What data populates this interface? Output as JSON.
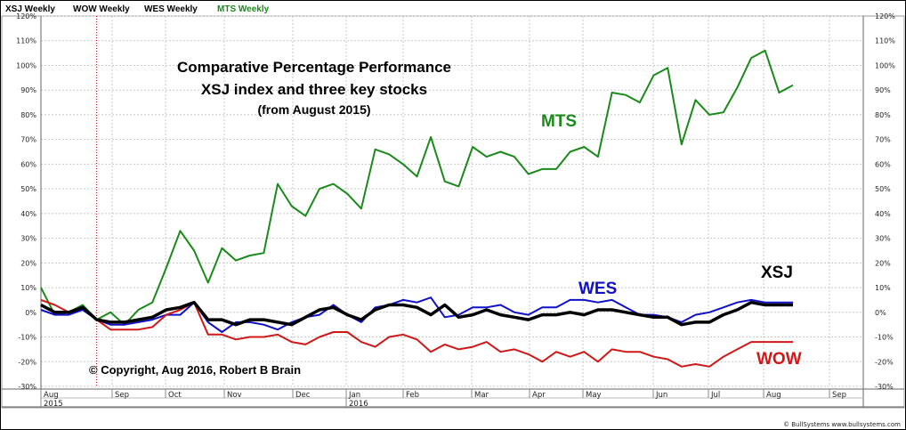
{
  "chart_data": {
    "type": "line",
    "legend": [
      {
        "name": "XSJ Weekly",
        "color": "#000000"
      },
      {
        "name": "WOW Weekly",
        "color": "#000000"
      },
      {
        "name": "WES Weekly",
        "color": "#000000"
      },
      {
        "name": "MTS Weekly",
        "color": "#1a8a1a"
      }
    ],
    "title": "Comparative Percentage Performance",
    "subtitle": "XSJ index and three key stocks",
    "subtitle2": "(from August 2015)",
    "copyright": "© Copyright, Aug 2016, Robert B Brain",
    "credit": "© BullSystems www.bullsystems.com",
    "ylim": [
      -30,
      120
    ],
    "y_ticks": [
      {
        "v": 120,
        "label": "120%"
      },
      {
        "v": 110,
        "label": "110%"
      },
      {
        "v": 100,
        "label": "100%"
      },
      {
        "v": 90,
        "label": "90%"
      },
      {
        "v": 80,
        "label": "80%"
      },
      {
        "v": 70,
        "label": "70%"
      },
      {
        "v": 60,
        "label": "60%"
      },
      {
        "v": 50,
        "label": "50%"
      },
      {
        "v": 40,
        "label": "40%"
      },
      {
        "v": 30,
        "label": "30%"
      },
      {
        "v": 20,
        "label": "20%"
      },
      {
        "v": 10,
        "label": "10%"
      },
      {
        "v": 0,
        "label": "0%"
      },
      {
        "v": -10,
        "label": "-10%"
      },
      {
        "v": -20,
        "label": "-20%"
      },
      {
        "v": -30,
        "label": "-30%"
      }
    ],
    "months": [
      "Aug",
      "Sep",
      "Oct",
      "Nov",
      "Dec",
      "Jan",
      "Feb",
      "Mar",
      "Apr",
      "May",
      "Jun",
      "Jul",
      "Aug",
      "Sep"
    ],
    "years": [
      "2015",
      "2016"
    ],
    "start_marker_week": 4,
    "annotations": {
      "MTS": "MTS",
      "WES": "WES",
      "XSJ": "XSJ",
      "WOW": "WOW"
    },
    "series": [
      {
        "name": "MTS",
        "color": "#1a8a1a",
        "width": 2,
        "values": [
          10,
          -1,
          0,
          3,
          -3,
          0,
          -5,
          1,
          4,
          18,
          33,
          25,
          12,
          26,
          21,
          23,
          24,
          52,
          43,
          39,
          50,
          52,
          48,
          42,
          66,
          64,
          60,
          55,
          71,
          53,
          51,
          67,
          63,
          65,
          63,
          56,
          58,
          58,
          65,
          67,
          63,
          89,
          88,
          85,
          96,
          99,
          68,
          86,
          80,
          81,
          91,
          103,
          106,
          89,
          92
        ]
      },
      {
        "name": "WES",
        "color": "#1010c8",
        "width": 2,
        "values": [
          1,
          -1,
          -1,
          1,
          -3,
          -5,
          -5,
          -4,
          -3,
          -1,
          -1,
          4,
          -4,
          -8,
          -4,
          -4,
          -5,
          -7,
          -4,
          -2,
          -1,
          3,
          -1,
          -4,
          2,
          3,
          5,
          4,
          6,
          -2,
          -1,
          2,
          2,
          3,
          0,
          -1,
          2,
          2,
          5,
          5,
          4,
          5,
          2,
          -1,
          -1,
          -2,
          -4,
          -1,
          0,
          2,
          4,
          5,
          4,
          4,
          4
        ]
      },
      {
        "name": "XSJ",
        "color": "#000000",
        "width": 3.5,
        "values": [
          3,
          0,
          0,
          2,
          -3,
          -4,
          -4,
          -3,
          -2,
          1,
          2,
          4,
          -3,
          -3,
          -5,
          -3,
          -3,
          -4,
          -5,
          -2,
          1,
          2,
          -1,
          -3,
          1,
          3,
          3,
          2,
          -1,
          3,
          -2,
          -1,
          1,
          -1,
          -2,
          -3,
          -1,
          -1,
          0,
          -1,
          1,
          1,
          0,
          -1,
          -2,
          -2,
          -5,
          -4,
          -4,
          -1,
          1,
          4,
          3,
          3,
          3
        ]
      },
      {
        "name": "WOW",
        "color": "#d01818",
        "width": 2,
        "values": [
          5,
          3,
          0,
          2,
          -3,
          -7,
          -7,
          -7,
          -6,
          -1,
          1,
          4,
          -9,
          -9,
          -11,
          -10,
          -10,
          -9,
          -12,
          -13,
          -10,
          -8,
          -8,
          -12,
          -14,
          -10,
          -9,
          -11,
          -16,
          -13,
          -15,
          -14,
          -12,
          -16,
          -15,
          -17,
          -20,
          -16,
          -18,
          -16,
          -20,
          -15,
          -16,
          -16,
          -18,
          -19,
          -22,
          -21,
          -22,
          -18,
          -15,
          -12,
          -12,
          -12,
          -12
        ]
      }
    ]
  }
}
